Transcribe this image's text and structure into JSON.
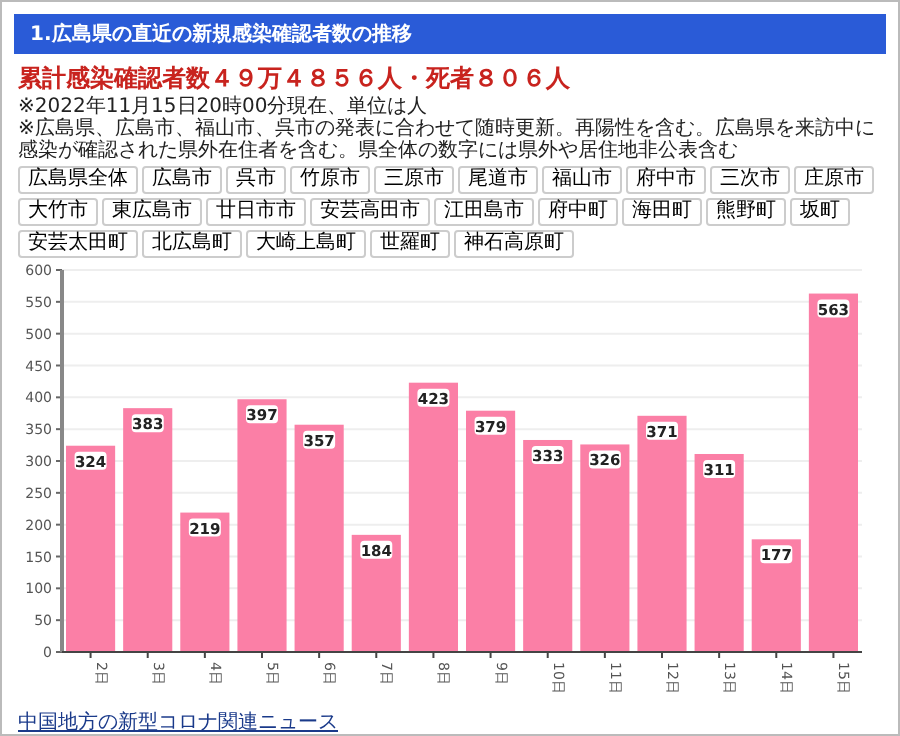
{
  "chart_data": {
    "type": "bar",
    "title": "1.広島県の直近の新規感染確認者数の推移",
    "subtitle": "累計感染確認者数４９万４８５６人・死者８０６人",
    "categories": [
      "2日",
      "3日",
      "4日",
      "5日",
      "6日",
      "7日",
      "8日",
      "9日",
      "10日",
      "11日",
      "12日",
      "13日",
      "14日",
      "15日"
    ],
    "values": [
      324,
      383,
      219,
      397,
      357,
      184,
      423,
      379,
      333,
      326,
      371,
      311,
      177,
      563
    ],
    "color": "#fb7fa6",
    "ylim": [
      0,
      600
    ],
    "yticks": [
      0,
      50,
      100,
      150,
      200,
      250,
      300,
      350,
      400,
      450,
      500,
      550,
      600
    ],
    "grid": "y",
    "data_labels": true,
    "annotations": [
      "※2022年11月15日20時00分現在、単位は人",
      "※広島県、広島市、福山市、呉市の発表に合わせて随時更新。再陽性を含む。広島県を来訪中に感染が確認された県外在住者を含む。県全体の数字には県外や居住地非公表含む",
      "広島県全体",
      "広島市",
      "呉市",
      "竹原市",
      "三原市",
      "尾道市",
      "福山市",
      "府中市",
      "三次市",
      "庄原市",
      "大竹市",
      "東広島市",
      "廿日市市",
      "安芸高田市",
      "江田島市",
      "府中町",
      "海田町",
      "熊野町",
      "坂町",
      "安芸太田町",
      "北広島町",
      "大崎上島町",
      "世羅町",
      "神石高原町",
      "中国地方の新型コロナ関連ニュース"
    ]
  }
}
